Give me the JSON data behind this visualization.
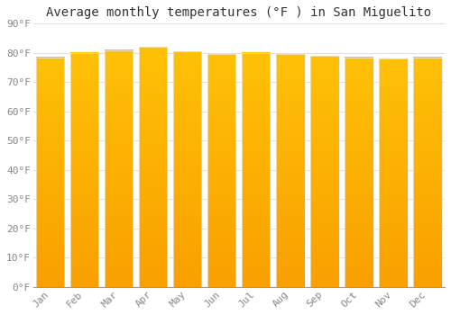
{
  "title": "Average monthly temperatures (°F ) in San Miguelito",
  "months": [
    "Jan",
    "Feb",
    "Mar",
    "Apr",
    "May",
    "Jun",
    "Jul",
    "Aug",
    "Sep",
    "Oct",
    "Nov",
    "Dec"
  ],
  "values": [
    78.5,
    80.0,
    81.0,
    82.0,
    80.5,
    79.5,
    80.0,
    79.5,
    79.0,
    78.5,
    78.0,
    78.5
  ],
  "bar_color_top": "#FFC107",
  "bar_color_bottom": "#F9A000",
  "bar_edge_color": "#E8E8E8",
  "background_color": "#FFFFFF",
  "grid_color": "#E0E0E0",
  "ylim": [
    0,
    90
  ],
  "yticks": [
    0,
    10,
    20,
    30,
    40,
    50,
    60,
    70,
    80,
    90
  ],
  "title_fontsize": 10,
  "tick_fontsize": 8,
  "bar_color": "#FFC107"
}
